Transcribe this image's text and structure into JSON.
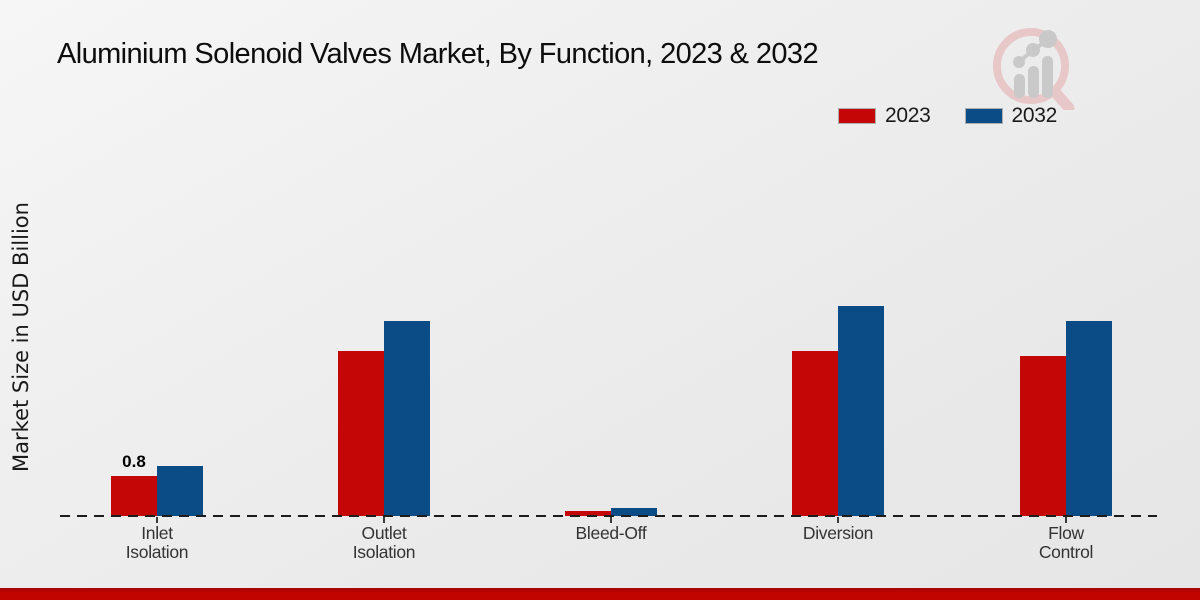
{
  "title": "Aluminium Solenoid Valves Market, By Function, 2023 & 2032",
  "ylabel": "Market Size in USD Billion",
  "legend": [
    {
      "label": "2023",
      "color": "#c40606"
    },
    {
      "label": "2032",
      "color": "#0b4c87"
    }
  ],
  "logo": {
    "name": "market-research-magnifier-logo",
    "ring_color": "#e7c6c6",
    "bars_color": "#c8c8c8"
  },
  "colors": {
    "series_2023": "#c40606",
    "series_2032": "#0b4c87",
    "footer_bar": "#c10400",
    "baseline": "#1c1c1c"
  },
  "chart_data": {
    "type": "bar",
    "title": "Aluminium Solenoid Valves Market, By Function, 2023 & 2032",
    "xlabel": "",
    "ylabel": "Market Size in USD Billion",
    "categories": [
      "Inlet Isolation",
      "Outlet Isolation",
      "Bleed-Off",
      "Diversion",
      "Flow Control"
    ],
    "category_label_lines": [
      [
        "Inlet",
        "Isolation"
      ],
      [
        "Outlet",
        "Isolation"
      ],
      [
        "Bleed-Off"
      ],
      [
        "Diversion"
      ],
      [
        "Flow",
        "Control"
      ]
    ],
    "series": [
      {
        "name": "2023",
        "color": "#c40606",
        "values": [
          0.8,
          3.3,
          0.1,
          3.3,
          3.2
        ],
        "data_labels": [
          "0.8",
          "",
          "",
          "",
          ""
        ]
      },
      {
        "name": "2032",
        "color": "#0b4c87",
        "values": [
          1.0,
          3.9,
          0.15,
          4.2,
          3.9
        ],
        "data_labels": [
          "",
          "",
          "",
          "",
          ""
        ]
      }
    ],
    "ylim": [
      0,
      4.5
    ],
    "y_axis_ticks_visible": false,
    "baseline_style": "dashed",
    "grid": false,
    "legend_position": "top-right"
  }
}
